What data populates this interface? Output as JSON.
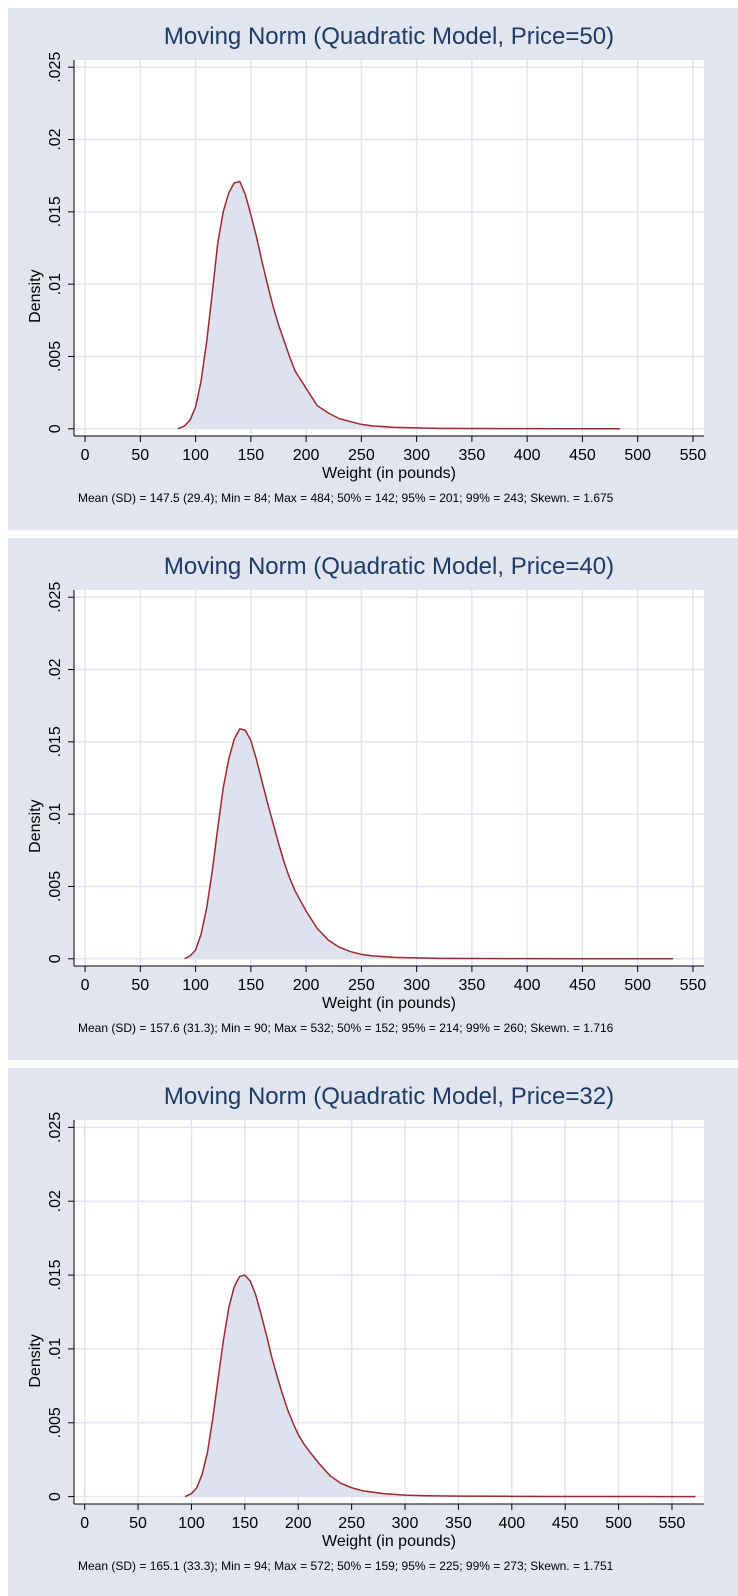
{
  "chart_data": [
    {
      "type": "area",
      "title": "Moving Norm (Quadratic Model, Price=50)",
      "xlabel": "Weight (in pounds)",
      "ylabel": "Density",
      "xlim": [
        -10,
        560
      ],
      "ylim": [
        -0.0005,
        0.0255
      ],
      "xticks": [
        0,
        50,
        100,
        150,
        200,
        250,
        300,
        350,
        400,
        450,
        500,
        550
      ],
      "yticks": [
        0,
        0.005,
        0.01,
        0.015,
        0.02,
        0.025
      ],
      "ytick_labels": [
        "0",
        ".005",
        ".01",
        ".015",
        ".02",
        ".025"
      ],
      "grid": true,
      "note": "Mean (SD) = 147.5 (29.4); Min = 84; Max = 484; 50% = 142; 95% = 201; 99% = 243; Skewn. = 1.675",
      "x": [
        84,
        90,
        95,
        100,
        105,
        110,
        115,
        120,
        125,
        130,
        135,
        140,
        145,
        150,
        155,
        160,
        165,
        170,
        175,
        180,
        185,
        190,
        195,
        200,
        205,
        210,
        220,
        230,
        240,
        250,
        260,
        280,
        300,
        320,
        350,
        400,
        450,
        484
      ],
      "values": [
        0,
        0.0002,
        0.0006,
        0.0015,
        0.0033,
        0.006,
        0.0093,
        0.0128,
        0.015,
        0.0163,
        0.017,
        0.0171,
        0.0162,
        0.0148,
        0.0133,
        0.0116,
        0.01,
        0.0085,
        0.0072,
        0.0061,
        0.005,
        0.004,
        0.0034,
        0.0028,
        0.0022,
        0.0016,
        0.0011,
        0.0007,
        0.0005,
        0.0003,
        0.0002,
        0.0001,
        6e-05,
        3e-05,
        2e-05,
        1e-05,
        5e-06,
        0
      ],
      "colors": {
        "panel_bg": "#e0e5f0",
        "plot_bg": "#ffffff",
        "grid": "#e0e5f0",
        "fill": "#dde2ee",
        "line": "#9a2a2f",
        "title": "#1f3a64"
      }
    },
    {
      "type": "area",
      "title": "Moving Norm (Quadratic Model, Price=40)",
      "xlabel": "Weight (in pounds)",
      "ylabel": "Density",
      "xlim": [
        -10,
        560
      ],
      "ylim": [
        -0.0005,
        0.0255
      ],
      "xticks": [
        0,
        50,
        100,
        150,
        200,
        250,
        300,
        350,
        400,
        450,
        500,
        550
      ],
      "yticks": [
        0,
        0.005,
        0.01,
        0.015,
        0.02,
        0.025
      ],
      "ytick_labels": [
        "0",
        ".005",
        ".01",
        ".015",
        ".02",
        ".025"
      ],
      "grid": true,
      "note": "Mean (SD) = 157.6 (31.3); Min = 90; Max = 532; 50% = 152; 95% = 214; 99% = 260; Skewn. = 1.716",
      "x": [
        90,
        95,
        100,
        105,
        110,
        115,
        120,
        125,
        130,
        135,
        140,
        145,
        150,
        155,
        160,
        165,
        170,
        175,
        180,
        185,
        190,
        195,
        200,
        205,
        210,
        220,
        230,
        240,
        250,
        260,
        280,
        300,
        320,
        350,
        400,
        450,
        500,
        532
      ],
      "values": [
        0,
        0.0002,
        0.0006,
        0.0017,
        0.0035,
        0.006,
        0.009,
        0.0118,
        0.0138,
        0.0152,
        0.0159,
        0.0158,
        0.0151,
        0.0138,
        0.0123,
        0.0108,
        0.0094,
        0.008,
        0.0067,
        0.0056,
        0.0047,
        0.004,
        0.0033,
        0.0027,
        0.0021,
        0.0013,
        0.0008,
        0.0005,
        0.0003,
        0.0002,
        0.0001,
        6e-05,
        3e-05,
        2e-05,
        1e-05,
        5e-06,
        2e-06,
        0
      ],
      "colors": {
        "panel_bg": "#e0e5f0",
        "plot_bg": "#ffffff",
        "grid": "#e0e5f0",
        "fill": "#dde2ee",
        "line": "#9a2a2f",
        "title": "#1f3a64"
      }
    },
    {
      "type": "area",
      "title": "Moving Norm (Quadratic Model, Price=32)",
      "xlabel": "Weight (in pounds)",
      "ylabel": "Density",
      "xlim": [
        -10,
        580
      ],
      "ylim": [
        -0.0005,
        0.0255
      ],
      "xticks": [
        0,
        50,
        100,
        150,
        200,
        250,
        300,
        350,
        400,
        450,
        500,
        550
      ],
      "yticks": [
        0,
        0.005,
        0.01,
        0.015,
        0.02,
        0.025
      ],
      "ytick_labels": [
        "0",
        ".005",
        ".01",
        ".015",
        ".02",
        ".025"
      ],
      "grid": true,
      "note": "Mean (SD) = 165.1 (33.3); Min = 94; Max = 572; 50% = 159; 95% = 225;  99% = 273; Skewn. = 1.751",
      "x": [
        94,
        100,
        105,
        110,
        115,
        120,
        125,
        130,
        135,
        140,
        145,
        150,
        155,
        160,
        165,
        170,
        175,
        180,
        185,
        190,
        195,
        200,
        205,
        210,
        220,
        230,
        240,
        250,
        260,
        280,
        300,
        320,
        350,
        400,
        450,
        500,
        550,
        572
      ],
      "values": [
        0,
        0.0002,
        0.0006,
        0.0015,
        0.003,
        0.0053,
        0.008,
        0.0106,
        0.0128,
        0.0142,
        0.0149,
        0.015,
        0.0146,
        0.0137,
        0.0124,
        0.011,
        0.0095,
        0.0082,
        0.007,
        0.0059,
        0.005,
        0.0042,
        0.0036,
        0.0031,
        0.0022,
        0.0014,
        0.0009,
        0.0006,
        0.0004,
        0.0002,
        0.0001,
        6e-05,
        3e-05,
        2e-05,
        1e-05,
        5e-06,
        2e-06,
        0
      ],
      "colors": {
        "panel_bg": "#e0e5f0",
        "plot_bg": "#ffffff",
        "grid": "#e0e5f0",
        "fill": "#dde2ee",
        "line": "#9a2a2f",
        "title": "#1f3a64"
      }
    }
  ]
}
